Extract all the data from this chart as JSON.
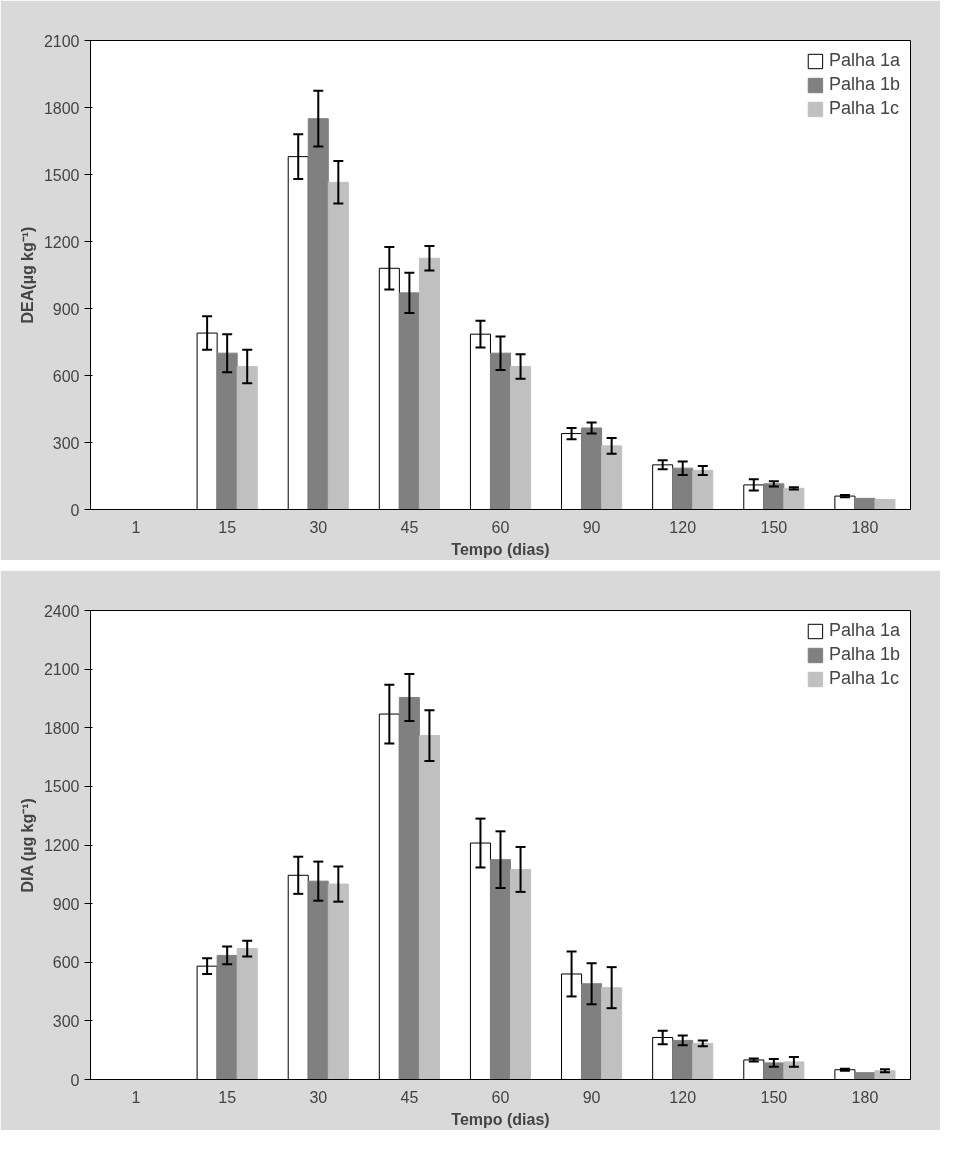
{
  "chart_data": [
    {
      "type": "bar",
      "categories": [
        "1",
        "15",
        "30",
        "45",
        "60",
        "90",
        "120",
        "150",
        "180"
      ],
      "xlabel": "Tempo (dias)",
      "ylabel": "DEA(µg kg⁻¹)",
      "ylim": [
        0,
        2100
      ],
      "yticks": [
        0,
        300,
        600,
        900,
        1200,
        1500,
        1800,
        2100
      ],
      "grid": false,
      "legend": "top right",
      "series": [
        {
          "name": "Palha 1a",
          "color": "#ffffff",
          "values": [
            null,
            790,
            1580,
            1080,
            785,
            340,
            200,
            110,
            60
          ],
          "errors": [
            null,
            75,
            100,
            95,
            60,
            25,
            20,
            25,
            5
          ]
        },
        {
          "name": "Palha 1b",
          "color": "#808080",
          "values": [
            null,
            700,
            1750,
            970,
            700,
            365,
            185,
            115,
            50
          ],
          "errors": [
            null,
            85,
            125,
            90,
            75,
            25,
            30,
            12,
            null
          ]
        },
        {
          "name": "Palha 1c",
          "color": "#c0c0c0",
          "values": [
            null,
            640,
            1465,
            1125,
            640,
            285,
            175,
            95,
            45
          ],
          "errors": [
            null,
            75,
            95,
            55,
            55,
            35,
            20,
            5,
            null
          ]
        }
      ]
    },
    {
      "type": "bar",
      "categories": [
        "1",
        "15",
        "30",
        "45",
        "60",
        "90",
        "120",
        "150",
        "180"
      ],
      "xlabel": "Tempo (dias)",
      "ylabel": "DIA (µg kg⁻¹)",
      "ylim": [
        0,
        2400
      ],
      "yticks": [
        0,
        300,
        600,
        900,
        1200,
        1500,
        1800,
        2100,
        2400
      ],
      "grid": false,
      "legend": "top right",
      "series": [
        {
          "name": "Palha 1a",
          "color": "#ffffff",
          "values": [
            null,
            580,
            1045,
            1870,
            1210,
            540,
            215,
            100,
            50
          ],
          "errors": [
            null,
            40,
            95,
            150,
            125,
            115,
            35,
            8,
            5
          ]
        },
        {
          "name": "Palha 1b",
          "color": "#808080",
          "values": [
            null,
            635,
            1015,
            1955,
            1125,
            490,
            200,
            85,
            35
          ],
          "errors": [
            null,
            45,
            100,
            120,
            145,
            105,
            25,
            20,
            null
          ]
        },
        {
          "name": "Palha 1c",
          "color": "#c0c0c0",
          "values": [
            null,
            670,
            1000,
            1760,
            1075,
            470,
            185,
            90,
            45
          ],
          "errors": [
            null,
            40,
            90,
            130,
            115,
            105,
            15,
            25,
            8
          ]
        }
      ]
    }
  ]
}
